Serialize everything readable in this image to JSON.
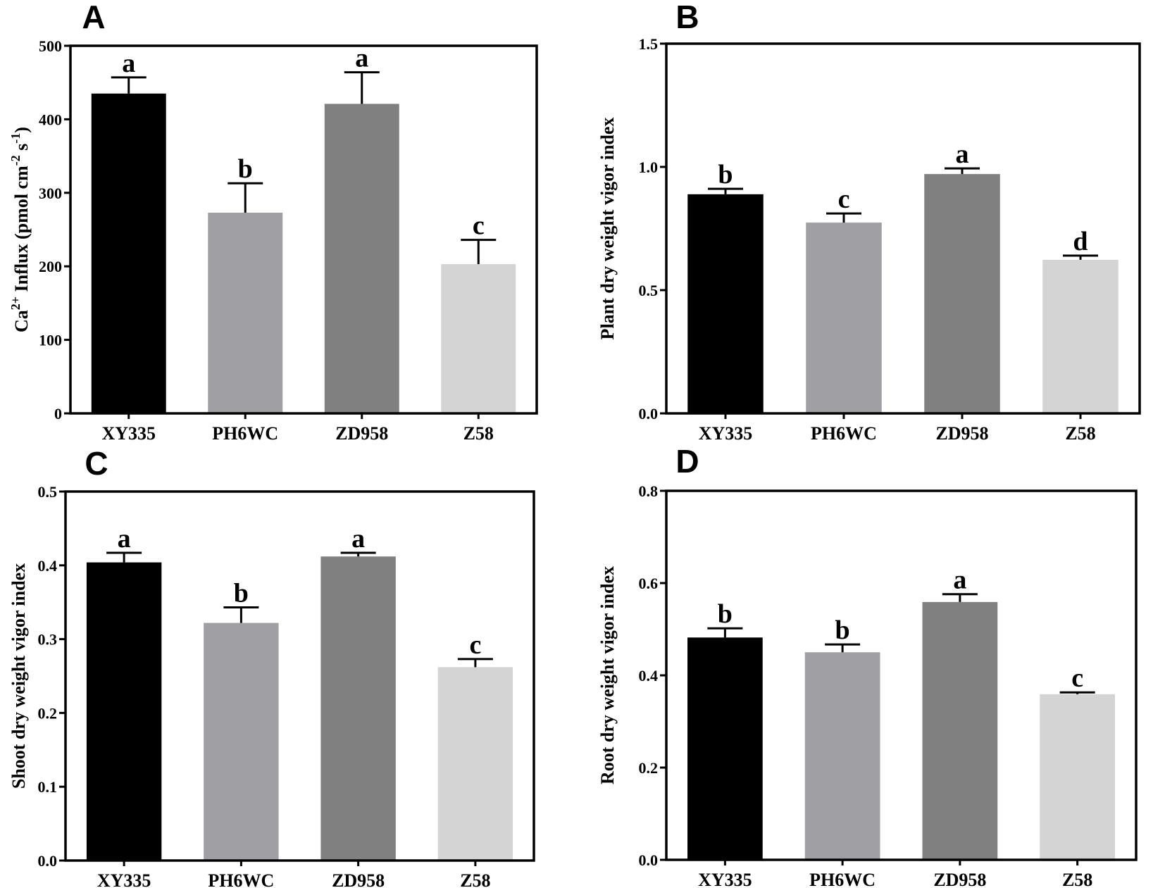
{
  "chart_data": [
    {
      "panel_label": "A",
      "type": "bar",
      "categories": [
        "XY335",
        "PH6WC",
        "ZD958",
        "Z58"
      ],
      "values": [
        435,
        273,
        421,
        203
      ],
      "error_upper": [
        457,
        313,
        464,
        236
      ],
      "significance_letters": [
        "a",
        "b",
        "a",
        "c"
      ],
      "ylabel": {
        "base": "Ca",
        "sup1": "2+",
        "mid": " Influx (pmol cm",
        "sup2": "-2",
        "mid2": " s",
        "sup3": "-1",
        "end": ")"
      },
      "ylim": [
        0,
        500
      ],
      "yticks": [
        "0",
        "100",
        "200",
        "300",
        "400",
        "500"
      ],
      "ytick_values": [
        0,
        100,
        200,
        300,
        400,
        500
      ],
      "grid": false
    },
    {
      "panel_label": "B",
      "type": "bar",
      "categories": [
        "XY335",
        "PH6WC",
        "ZD958",
        "Z58"
      ],
      "values": [
        0.889,
        0.774,
        0.971,
        0.623
      ],
      "error_upper": [
        0.911,
        0.811,
        0.994,
        0.64
      ],
      "significance_letters": [
        "b",
        "c",
        "a",
        "d"
      ],
      "ylabel": "Plant dry weight vigor index",
      "ylim": [
        0,
        1.5
      ],
      "yticks": [
        "0.0",
        "0.5",
        "1.0",
        "1.5"
      ],
      "ytick_values": [
        0,
        0.5,
        1.0,
        1.5
      ],
      "grid": false
    },
    {
      "panel_label": "C",
      "type": "bar",
      "categories": [
        "XY335",
        "PH6WC",
        "ZD958",
        "Z58"
      ],
      "values": [
        0.404,
        0.322,
        0.412,
        0.262
      ],
      "error_upper": [
        0.417,
        0.343,
        0.417,
        0.273
      ],
      "significance_letters": [
        "a",
        "b",
        "a",
        "c"
      ],
      "ylabel": "Shoot dry weight vigor index",
      "ylim": [
        0,
        0.5
      ],
      "yticks": [
        "0.0",
        "0.1",
        "0.2",
        "0.3",
        "0.4",
        "0.5"
      ],
      "ytick_values": [
        0,
        0.1,
        0.2,
        0.3,
        0.4,
        0.5
      ],
      "grid": false
    },
    {
      "panel_label": "D",
      "type": "bar",
      "categories": [
        "XY335",
        "PH6WC",
        "ZD958",
        "Z58"
      ],
      "values": [
        0.482,
        0.45,
        0.559,
        0.359
      ],
      "error_upper": [
        0.502,
        0.467,
        0.576,
        0.363
      ],
      "significance_letters": [
        "b",
        "b",
        "a",
        "c"
      ],
      "ylabel": "Root dry weight vigor index",
      "ylim": [
        0,
        0.8
      ],
      "yticks": [
        "0.0",
        "0.2",
        "0.4",
        "0.6",
        "0.8"
      ],
      "ytick_values": [
        0,
        0.2,
        0.4,
        0.6,
        0.8
      ],
      "grid": false
    }
  ],
  "bar_colors": [
    "#000000",
    "#a0a0a4",
    "#808080",
    "#d4d4d4"
  ]
}
